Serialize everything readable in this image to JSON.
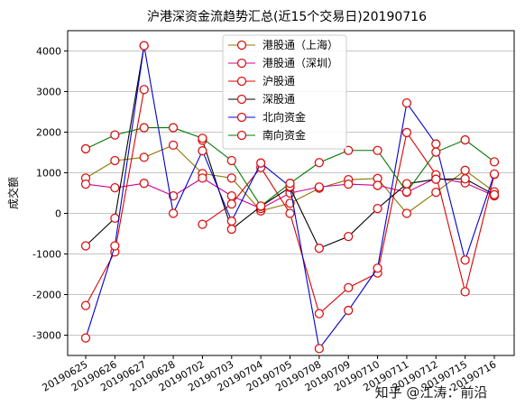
{
  "chart_data": {
    "type": "line",
    "title": "沪港深资金流趋势汇总(近15个交易日)20190716",
    "xlabel": "",
    "ylabel": "成交额",
    "ylim": [
      -3500,
      4500
    ],
    "yticks": [
      -3000,
      -2000,
      -1000,
      0,
      1000,
      2000,
      3000,
      4000
    ],
    "grid": "y",
    "legend_position": "top-center",
    "categories": [
      "20190625",
      "20190626",
      "20190627",
      "20190628",
      "20190702",
      "20190703",
      "20190704",
      "20190705",
      "20190708",
      "20190709",
      "20190710",
      "20190711",
      "20190712",
      "20190715",
      "20190716"
    ],
    "series": [
      {
        "name": "港股通（上海）",
        "color": "#8b7500",
        "values": [
          870,
          1300,
          1380,
          1680,
          980,
          870,
          60,
          250,
          620,
          830,
          860,
          0,
          520,
          1060,
          530
        ]
      },
      {
        "name": "港股通（深圳）",
        "color": "#cc0099",
        "values": [
          720,
          630,
          740,
          430,
          870,
          430,
          120,
          500,
          650,
          720,
          690,
          520,
          870,
          750,
          430
        ]
      },
      {
        "name": "沪股通",
        "color": "#dd0000",
        "values": [
          -2270,
          -950,
          3050,
          null,
          -270,
          230,
          1130,
          0,
          -2470,
          -1830,
          -1470,
          1990,
          950,
          -1930,
          960
        ]
      },
      {
        "name": "深股通",
        "color": "#000000",
        "values": [
          -800,
          -120,
          4130,
          null,
          1800,
          -390,
          170,
          640,
          -860,
          -570,
          120,
          730,
          840,
          850,
          460
        ]
      },
      {
        "name": "北向资金",
        "color": "#0000cc",
        "values": [
          -3070,
          -800,
          4130,
          0,
          1540,
          -190,
          1240,
          660,
          -3330,
          -2390,
          -1350,
          2720,
          1710,
          -1150,
          970
        ]
      },
      {
        "name": "南向资金",
        "color": "#007700",
        "values": [
          1590,
          1930,
          2110,
          2110,
          1850,
          1300,
          180,
          740,
          1250,
          1550,
          1550,
          530,
          1510,
          1810,
          1270
        ]
      }
    ]
  },
  "watermark": "知乎 @江涛：前沿"
}
